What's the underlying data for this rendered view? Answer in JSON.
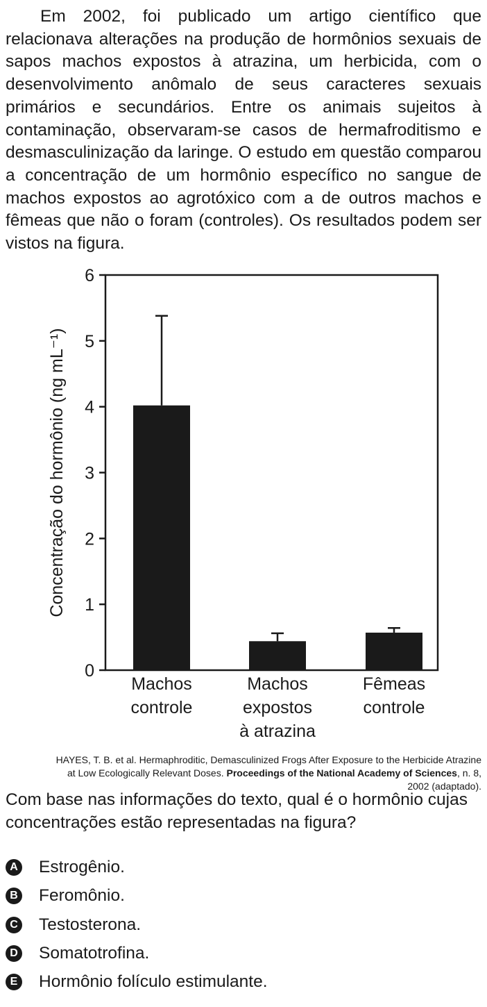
{
  "intro": {
    "paragraph": "Em 2002, foi publicado um artigo científico que relacionava alterações na produção de hormônios sexuais de sapos machos expostos à atrazina, um herbicida, com o desenvolvimento anômalo de seus caracteres sexuais primários e secundários. Entre os animais sujeitos à contaminação, observaram-se casos de hermafroditismo e desmasculinização da laringe. O estudo em questão comparou a concentração de um hormônio específico no sangue de machos expostos ao agrotóxico com a de outros machos e fêmeas que não o foram (controles). Os resultados podem ser vistos na figura."
  },
  "chart_data": {
    "type": "bar",
    "categories": [
      [
        "Machos",
        "controle"
      ],
      [
        "Machos",
        "expostos",
        "à atrazina"
      ],
      [
        "Fêmeas",
        "controle"
      ]
    ],
    "values": [
      4.02,
      0.44,
      0.57
    ],
    "error_upper": [
      5.38,
      0.56,
      0.64
    ],
    "ylabel": "Concentração do hormônio (ng mL⁻¹)",
    "ylim": [
      0,
      6
    ],
    "yticks": [
      0,
      1,
      2,
      3,
      4,
      5,
      6
    ],
    "grid": false,
    "bar_color": "#1a1a1a"
  },
  "citation": {
    "text_before": "HAYES, T. B. et al. Hermaphroditic, Demasculinized Frogs After Exposure to the Herbicide Atrazine at Low Ecologically Relevant Doses. ",
    "bold": "Proceedings of the National Academy of Sciences",
    "text_after": ", n. 8, 2002 (adaptado)."
  },
  "question": "Com base nas informações do texto, qual é o hormônio cujas concentrações estão representadas na figura?",
  "options": [
    {
      "letter": "A",
      "text": "Estrogênio."
    },
    {
      "letter": "B",
      "text": "Feromônio."
    },
    {
      "letter": "C",
      "text": "Testosterona."
    },
    {
      "letter": "D",
      "text": "Somatotrofina."
    },
    {
      "letter": "E",
      "text": "Hormônio folículo estimulante."
    }
  ]
}
